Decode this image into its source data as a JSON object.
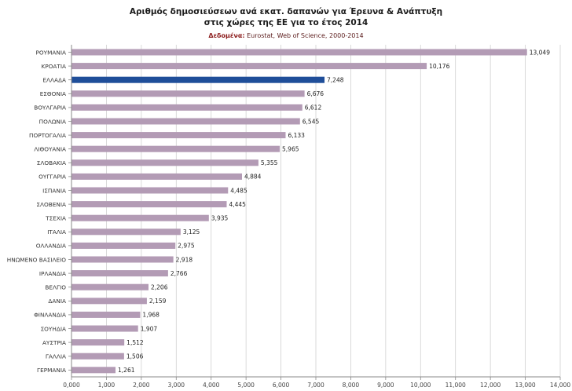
{
  "title_line1": "Αριθμός δημοσιεύσεων ανά εκατ. δαπανών για Έρευνα & Ανάπτυξη",
  "title_line2": "στις χώρες της ΕΕ για το έτος 2014",
  "source_label": "Δεδομένα:",
  "source_text": " Eurostat, Web of Science, 2000-2014",
  "colors": {
    "bar": "#b39bb5",
    "highlight": "#1f4e99",
    "grid": "#d0d0d0",
    "axis": "#888888"
  },
  "chart_data": {
    "type": "bar",
    "orientation": "horizontal",
    "title": "Αριθμός δημοσιεύσεων ανά εκατ. δαπανών για Έρευνα & Ανάπτυξη στις χώρες της ΕΕ για το έτος 2014",
    "categories": [
      "ΡΟΥΜΑΝΙΑ",
      "ΚΡΟΑΤΙΑ",
      "ΕΛΛΑΔΑ",
      "ΕΣΘΟΝΙΑ",
      "ΒΟΥΛΓΑΡΙΑ",
      "ΠΟΛΩΝΙΑ",
      "ΠΟΡΤΟΓΑΛΙΑ",
      "ΛΙΘΟΥΑΝΙΑ",
      "ΣΛΟΒΑΚΙΑ",
      "ΟΥΓΓΑΡΙΑ",
      "ΙΣΠΑΝΙΑ",
      "ΣΛΟΒΕΝΙΑ",
      "ΤΣΕΧΙΑ",
      "ΙΤΑΛΙΑ",
      "ΟΛΛΑΝΔΙΑ",
      "ΗΝΩΜΕΝΟ ΒΑΣΙΛΕΙΟ",
      "ΙΡΛΑΝΔΙΑ",
      "ΒΕΛΓΙΟ",
      "ΔΑΝΙΑ",
      "ΦΙΝΛΑΝΔΙΑ",
      "ΣΟΥΗΔΙΑ",
      "ΑΥΣΤΡΙΑ",
      "ΓΑΛΛΙΑ",
      "ΓΕΡΜΑΝΙΑ"
    ],
    "values": [
      13049,
      10176,
      7248,
      6676,
      6612,
      6545,
      6133,
      5965,
      5355,
      4884,
      4485,
      4445,
      3935,
      3125,
      2975,
      2918,
      2766,
      2206,
      2159,
      1968,
      1907,
      1512,
      1506,
      1261
    ],
    "value_labels": [
      "13,049",
      "10,176",
      "7,248",
      "6,676",
      "6,612",
      "6,545",
      "6,133",
      "5,965",
      "5,355",
      "4,884",
      "4,485",
      "4,445",
      "3,935",
      "3,125",
      "2,975",
      "2,918",
      "2,766",
      "2,206",
      "2,159",
      "1,968",
      "1,907",
      "1,512",
      "1,506",
      "1,261"
    ],
    "highlight": "ΕΛΛΑΔΑ",
    "xlim": [
      0,
      14000
    ],
    "xticks": [
      0,
      1000,
      2000,
      3000,
      4000,
      5000,
      6000,
      7000,
      8000,
      9000,
      10000,
      11000,
      12000,
      13000,
      14000
    ],
    "xtick_labels": [
      "0,000",
      "1,000",
      "2,000",
      "3,000",
      "4,000",
      "5,000",
      "6,000",
      "7,000",
      "8,000",
      "9,000",
      "10,000",
      "11,000",
      "12,000",
      "13,000",
      "14,000"
    ],
    "grid": true,
    "xlabel": "",
    "ylabel": ""
  }
}
